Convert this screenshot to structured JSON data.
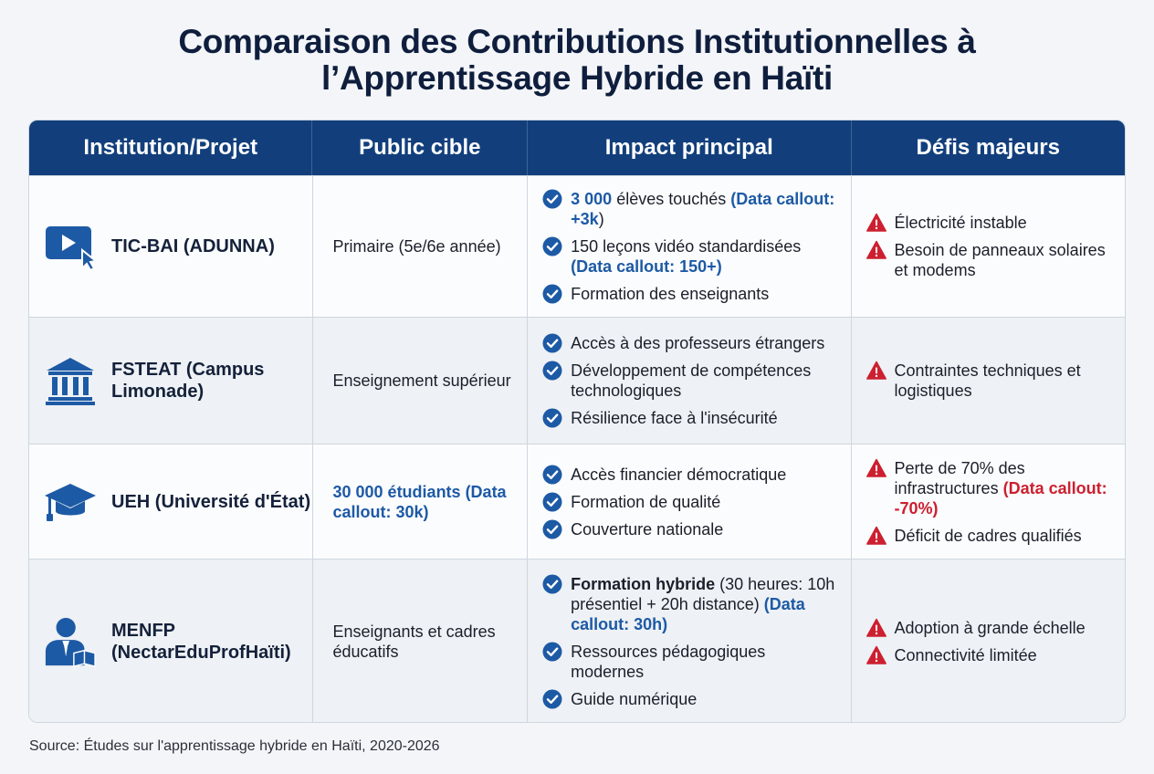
{
  "title": "Comparaison des Contributions Institutionnelles à l’Apprentissage Hybride en Haïti",
  "title_line1": "Comparaison des Contributions Institutionnelles à",
  "title_line2": "l’Apprentissage Hybride en Haïti",
  "headers": [
    "Institution/Projet",
    "Public cible",
    "Impact principal",
    "Défis majeurs"
  ],
  "colors": {
    "header_bg": "#123f7c",
    "accent_blue": "#1d5aa5",
    "warning_red": "#cc2030"
  },
  "rows": [
    {
      "icon": "video-play-icon",
      "institution": "TIC-BAI (ADUNNA)",
      "public": "Primaire (5e/6e année)",
      "impact": [
        {
          "parts": [
            {
              "t": "3 000",
              "s": "blue"
            },
            {
              "t": " élèves touchés ",
              "s": ""
            },
            {
              "t": "(Data callout: +3k",
              "s": "blue"
            },
            {
              "t": ")",
              "s": ""
            }
          ]
        },
        {
          "parts": [
            {
              "t": "150 leçons vidéo standardisées ",
              "s": ""
            },
            {
              "t": "(Data callout: 150+)",
              "s": "navy"
            }
          ]
        },
        {
          "parts": [
            {
              "t": "Formation des enseignants",
              "s": ""
            }
          ]
        }
      ],
      "challenges": [
        {
          "parts": [
            {
              "t": "Électricité instable",
              "s": ""
            }
          ]
        },
        {
          "parts": [
            {
              "t": "Besoin de panneaux solaires et modems",
              "s": ""
            }
          ]
        }
      ]
    },
    {
      "icon": "university-building-icon",
      "institution": "FSTEAT (Campus Limonade)",
      "public": "Enseignement supérieur",
      "impact": [
        {
          "parts": [
            {
              "t": "Accès à des professeurs étrangers",
              "s": ""
            }
          ]
        },
        {
          "parts": [
            {
              "t": "Développement de compétences technologiques",
              "s": ""
            }
          ]
        },
        {
          "parts": [
            {
              "t": "Résilience face à l'insécurité",
              "s": ""
            }
          ]
        }
      ],
      "challenges": [
        {
          "parts": [
            {
              "t": "Contraintes techniques et logistiques",
              "s": ""
            }
          ]
        }
      ]
    },
    {
      "icon": "graduation-cap-icon",
      "institution": "UEH (Université d'État)",
      "public": "30 000 étudiants (Data callout: 30k)",
      "public_highlight": true,
      "impact": [
        {
          "parts": [
            {
              "t": "Accès financier démocratique",
              "s": ""
            }
          ]
        },
        {
          "parts": [
            {
              "t": "Formation de qualité",
              "s": ""
            }
          ]
        },
        {
          "parts": [
            {
              "t": "Couverture nationale",
              "s": ""
            }
          ]
        }
      ],
      "challenges": [
        {
          "parts": [
            {
              "t": "Perte de 70% des infrastructures ",
              "s": ""
            },
            {
              "t": "(Data callout: -70%)",
              "s": "red"
            }
          ]
        },
        {
          "parts": [
            {
              "t": "Déficit de cadres qualifiés",
              "s": ""
            }
          ]
        }
      ]
    },
    {
      "icon": "teacher-book-icon",
      "institution": "MENFP (NectarEduProfHaïti)",
      "public": "Enseignants et cadres éducatifs",
      "impact": [
        {
          "parts": [
            {
              "t": "Formation hybride",
              "s": "bold"
            },
            {
              "t": " (30 heures: 10h présentiel + 20h distance) ",
              "s": ""
            },
            {
              "t": "(Data callout: 30h)",
              "s": "navy"
            }
          ]
        },
        {
          "parts": [
            {
              "t": "Ressources pédagogiques modernes",
              "s": ""
            }
          ]
        },
        {
          "parts": [
            {
              "t": "Guide numérique",
              "s": ""
            }
          ]
        }
      ],
      "challenges": [
        {
          "parts": [
            {
              "t": "Adoption à grande échelle",
              "s": ""
            }
          ]
        },
        {
          "parts": [
            {
              "t": "Connectivité limitée",
              "s": ""
            }
          ]
        }
      ]
    }
  ],
  "source": "Source: Études sur l'apprentissage hybride en Haïti, 2020-2026"
}
